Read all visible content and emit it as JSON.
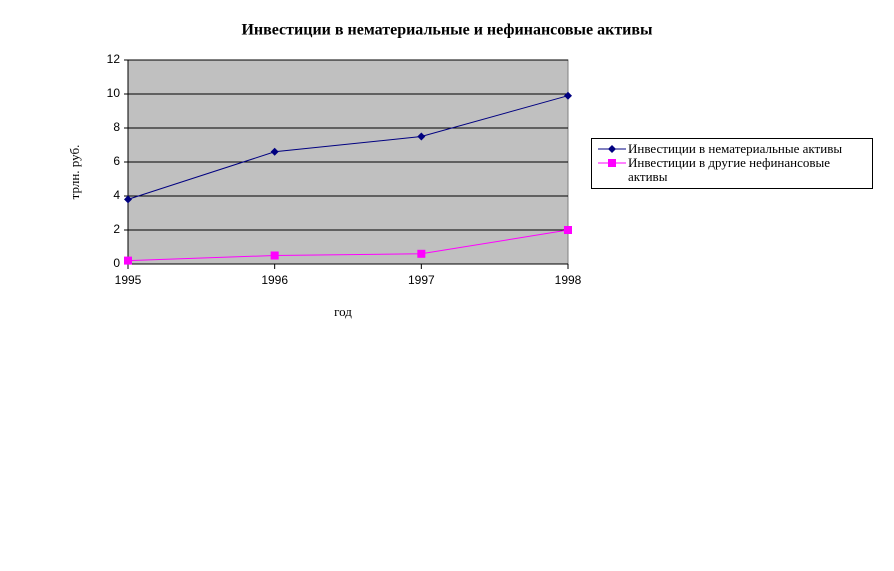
{
  "chart_data": {
    "type": "line",
    "title": "Инвестиции в нематериальные и нефинансовые активы",
    "x_label": "год",
    "y_label": "трлн. руб.",
    "x": [
      1995,
      1996,
      1997,
      1998
    ],
    "xlim": [
      1995,
      1998
    ],
    "xticks": [
      1995,
      1996,
      1997,
      1998
    ],
    "ylim": [
      0,
      12
    ],
    "yticks": [
      0,
      2,
      4,
      6,
      8,
      10,
      12
    ],
    "grid": true,
    "background": "#c0c0c0",
    "legend": "right",
    "series": [
      {
        "name": "Инвестиции в нематериальные активы",
        "color": "#000080",
        "marker": "diamond",
        "values": [
          3.8,
          6.6,
          7.5,
          9.9
        ]
      },
      {
        "name": "Инвестиции в другие нефинансовые активы",
        "color": "#ff00ff",
        "marker": "square",
        "values": [
          0.2,
          0.5,
          0.6,
          2.0
        ]
      }
    ]
  }
}
